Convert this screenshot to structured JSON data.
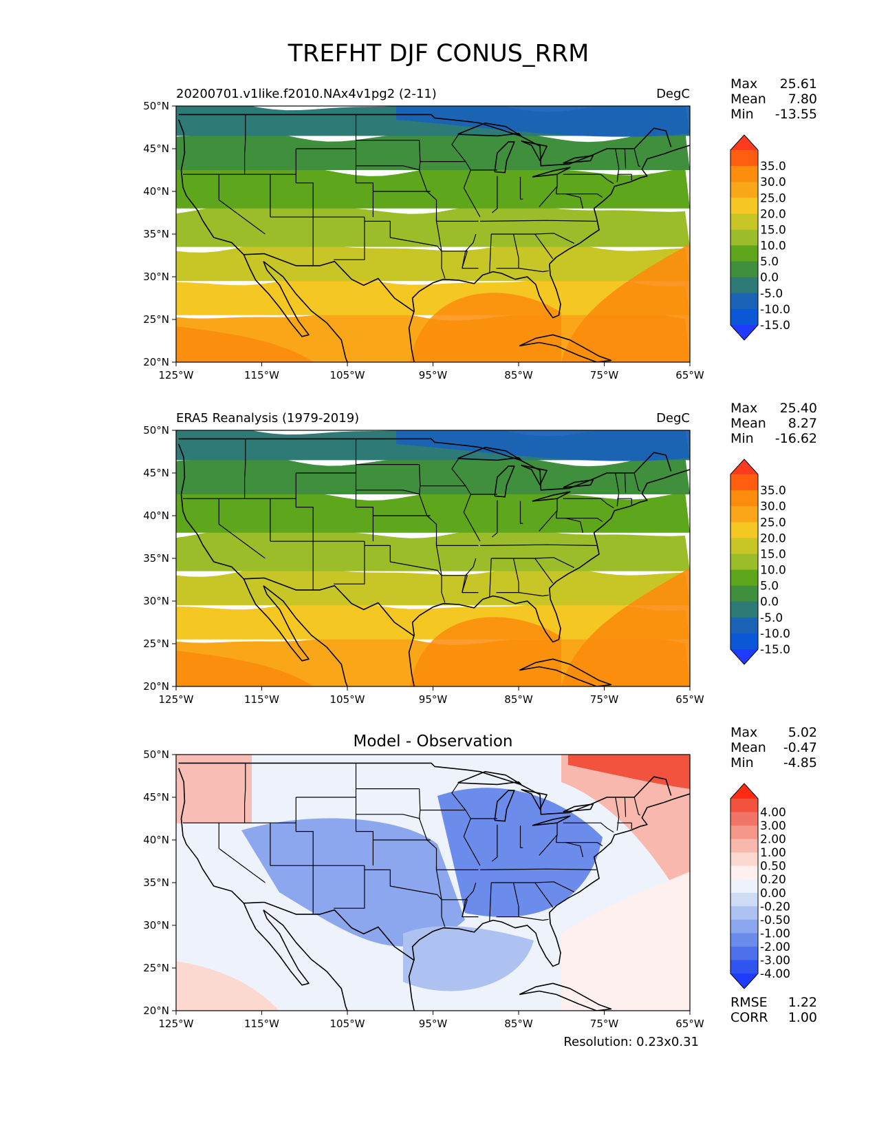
{
  "figure": {
    "title": "TREFHT DJF CONUS_RRM",
    "footer": "Resolution: 0.23x0.31"
  },
  "chart_data": [
    {
      "type": "heatmap",
      "panel": "model",
      "left_title": "20200701.v1like.f2010.NAx4v1pg2 (2-11)",
      "center_title": "",
      "units": "DegC",
      "stats": [
        {
          "label": "Max",
          "value": "25.61"
        },
        {
          "label": "Mean",
          "value": "7.80"
        },
        {
          "label": "Min",
          "value": "-13.55"
        }
      ],
      "extra_stats": [],
      "x_ticks": [
        "125°W",
        "115°W",
        "105°W",
        "95°W",
        "85°W",
        "75°W",
        "65°W"
      ],
      "y_ticks": [
        "50°N",
        "45°N",
        "40°N",
        "35°N",
        "30°N",
        "25°N",
        "20°N"
      ],
      "xlim": [
        -125,
        -65
      ],
      "ylim": [
        20,
        50
      ],
      "colorbar": {
        "labels": [
          "35.0",
          "30.0",
          "25.0",
          "20.0",
          "15.0",
          "10.0",
          "5.0",
          "0.0",
          "-5.0",
          "-10.0",
          "-15.0"
        ],
        "colors": [
          "#ff3b1f",
          "#ff5d0f",
          "#fb8c0c",
          "#f9a619",
          "#f5c723",
          "#c8c626",
          "#9cbd2a",
          "#5ea61c",
          "#3f8f3c",
          "#2d7a76",
          "#1a63b6",
          "#0a58d6",
          "#1f3bff"
        ]
      },
      "field": "temperature"
    },
    {
      "type": "heatmap",
      "panel": "observation",
      "left_title": "ERA5 Reanalysis (1979-2019)",
      "center_title": "",
      "units": "DegC",
      "stats": [
        {
          "label": "Max",
          "value": "25.40"
        },
        {
          "label": "Mean",
          "value": "8.27"
        },
        {
          "label": "Min",
          "value": "-16.62"
        }
      ],
      "extra_stats": [],
      "x_ticks": [
        "125°W",
        "115°W",
        "105°W",
        "95°W",
        "85°W",
        "75°W",
        "65°W"
      ],
      "y_ticks": [
        "50°N",
        "45°N",
        "40°N",
        "35°N",
        "30°N",
        "25°N",
        "20°N"
      ],
      "xlim": [
        -125,
        -65
      ],
      "ylim": [
        20,
        50
      ],
      "colorbar": {
        "labels": [
          "35.0",
          "30.0",
          "25.0",
          "20.0",
          "15.0",
          "10.0",
          "5.0",
          "0.0",
          "-5.0",
          "-10.0",
          "-15.0"
        ],
        "colors": [
          "#ff3b1f",
          "#ff5d0f",
          "#fb8c0c",
          "#f9a619",
          "#f5c723",
          "#c8c626",
          "#9cbd2a",
          "#5ea61c",
          "#3f8f3c",
          "#2d7a76",
          "#1a63b6",
          "#0a58d6",
          "#1f3bff"
        ]
      },
      "field": "temperature"
    },
    {
      "type": "heatmap",
      "panel": "difference",
      "left_title": "",
      "center_title": "Model - Observation",
      "units": "",
      "stats": [
        {
          "label": "Max",
          "value": "5.02"
        },
        {
          "label": "Mean",
          "value": "-0.47"
        },
        {
          "label": "Min",
          "value": "-4.85"
        }
      ],
      "extra_stats": [
        {
          "label": "RMSE",
          "value": "1.22"
        },
        {
          "label": "CORR",
          "value": "1.00"
        }
      ],
      "x_ticks": [
        "125°W",
        "115°W",
        "105°W",
        "95°W",
        "85°W",
        "75°W",
        "65°W"
      ],
      "y_ticks": [
        "50°N",
        "45°N",
        "40°N",
        "35°N",
        "30°N",
        "25°N",
        "20°N"
      ],
      "xlim": [
        -125,
        -65
      ],
      "ylim": [
        20,
        50
      ],
      "colorbar": {
        "labels": [
          "4.00",
          "3.00",
          "2.00",
          "1.00",
          "0.50",
          "0.20",
          "0.00",
          "-0.20",
          "-0.50",
          "-1.00",
          "-2.00",
          "-3.00",
          "-4.00"
        ],
        "colors": [
          "#ff2a12",
          "#f2533f",
          "#f27466",
          "#f5968a",
          "#f8b8ad",
          "#fbd9d1",
          "#fdf0ee",
          "#eef2fb",
          "#cfdcf6",
          "#aec2f2",
          "#8ca7ee",
          "#6c8cec",
          "#4e70ec",
          "#3054f0",
          "#1f3bff"
        ]
      },
      "field": "difference"
    }
  ]
}
